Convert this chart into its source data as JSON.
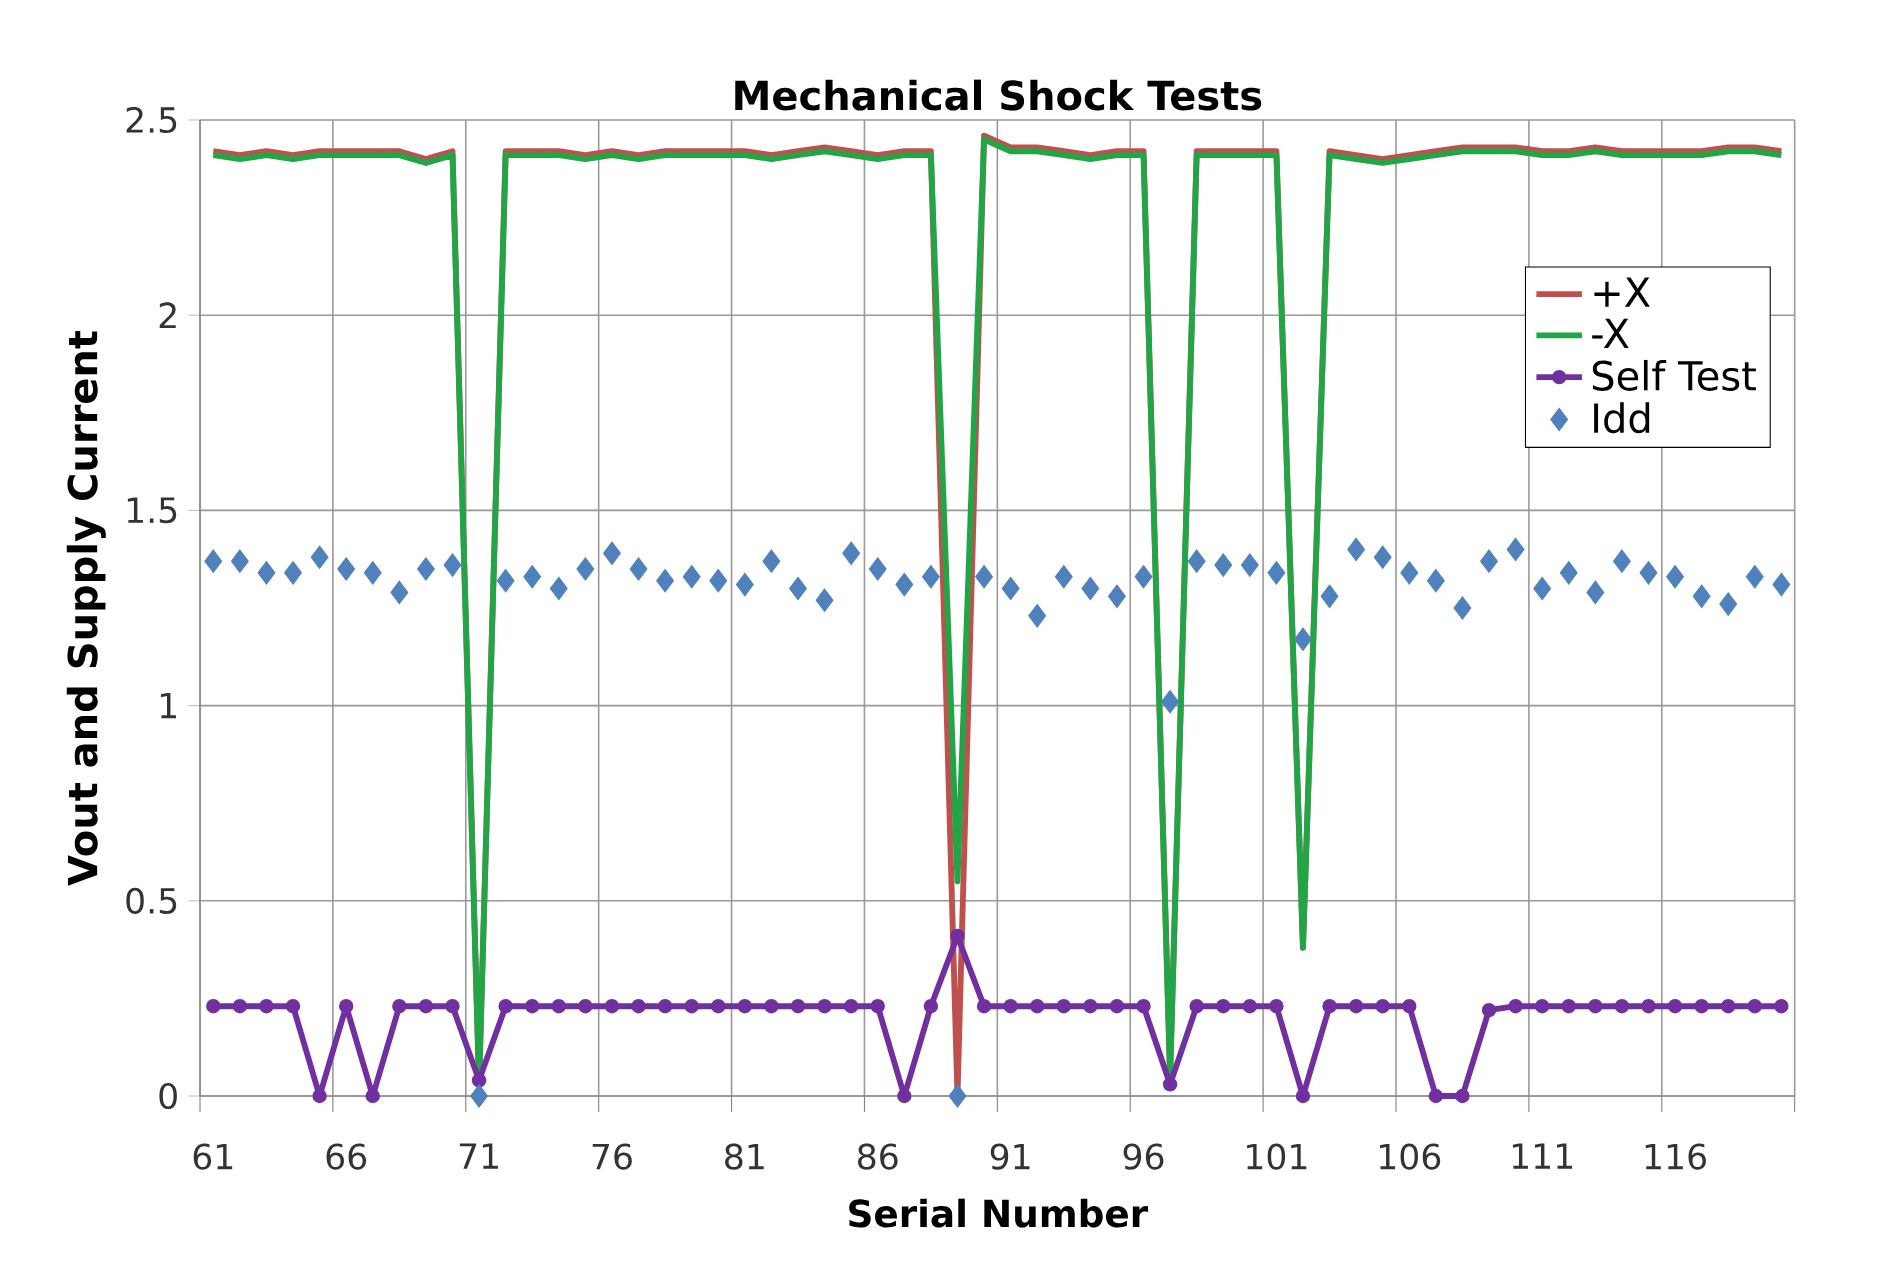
{
  "chart_data": {
    "type": "line",
    "title": "Mechanical Shock Tests",
    "xlabel": "Serial Number",
    "ylabel": "Vout and Supply Current",
    "categories": [
      "61",
      null,
      null,
      null,
      null,
      "66",
      null,
      null,
      null,
      null,
      "71",
      null,
      null,
      null,
      null,
      "76",
      null,
      null,
      null,
      null,
      "81",
      null,
      null,
      null,
      null,
      "86",
      null,
      null,
      null,
      null,
      "91",
      null,
      null,
      null,
      null,
      "96",
      null,
      null,
      null,
      null,
      "101",
      null,
      null,
      null,
      null,
      "106",
      null,
      null,
      null,
      null,
      "111",
      null,
      null,
      null,
      null,
      "116",
      null,
      null,
      null,
      null
    ],
    "ylim": [
      0,
      2.5
    ],
    "yticks": [
      0,
      0.5,
      1,
      1.5,
      2,
      2.5
    ],
    "grid": true,
    "legend": "right",
    "series": [
      {
        "name": "+X",
        "color": "#c0504d",
        "marker": "none",
        "values": [
          2.42,
          2.41,
          2.42,
          2.41,
          2.42,
          2.42,
          2.42,
          2.42,
          2.4,
          2.42,
          0.03,
          2.42,
          2.42,
          2.42,
          2.41,
          2.42,
          2.41,
          2.42,
          2.42,
          2.42,
          2.42,
          2.41,
          2.42,
          2.43,
          2.42,
          2.41,
          2.42,
          2.42,
          0,
          2.46,
          2.43,
          2.43,
          2.42,
          2.41,
          2.42,
          2.42,
          0.05,
          2.42,
          2.42,
          2.42,
          2.42,
          0.38,
          2.42,
          2.41,
          2.4,
          2.41,
          2.42,
          2.43,
          2.43,
          2.43,
          2.42,
          2.42,
          2.43,
          2.42,
          2.42,
          2.42,
          2.42,
          2.43,
          2.43,
          2.42
        ]
      },
      {
        "name": "-X",
        "color": "#22a547",
        "marker": "none",
        "values": [
          2.41,
          2.4,
          2.41,
          2.4,
          2.41,
          2.41,
          2.41,
          2.41,
          2.39,
          2.41,
          0.03,
          2.41,
          2.41,
          2.41,
          2.4,
          2.41,
          2.4,
          2.41,
          2.41,
          2.41,
          2.41,
          2.4,
          2.41,
          2.42,
          2.41,
          2.4,
          2.41,
          2.41,
          0.55,
          2.45,
          2.42,
          2.42,
          2.41,
          2.4,
          2.41,
          2.41,
          0.05,
          2.41,
          2.41,
          2.41,
          2.41,
          0.38,
          2.41,
          2.4,
          2.39,
          2.4,
          2.41,
          2.42,
          2.42,
          2.42,
          2.41,
          2.41,
          2.42,
          2.41,
          2.41,
          2.41,
          2.41,
          2.42,
          2.42,
          2.41
        ]
      },
      {
        "name": "Self Test",
        "color": "#7030a0",
        "marker": "circle",
        "values": [
          0.23,
          0.23,
          0.23,
          0.23,
          0,
          0.23,
          0,
          0.23,
          0.23,
          0.23,
          0.04,
          0.23,
          0.23,
          0.23,
          0.23,
          0.23,
          0.23,
          0.23,
          0.23,
          0.23,
          0.23,
          0.23,
          0.23,
          0.23,
          0.23,
          0.23,
          0,
          0.23,
          0.41,
          0.23,
          0.23,
          0.23,
          0.23,
          0.23,
          0.23,
          0.23,
          0.03,
          0.23,
          0.23,
          0.23,
          0.23,
          0,
          0.23,
          0.23,
          0.23,
          0.23,
          0,
          0,
          0.22,
          0.23,
          0.23,
          0.23,
          0.23,
          0.23,
          0.23,
          0.23,
          0.23,
          0.23,
          0.23,
          0.23
        ]
      },
      {
        "name": "Idd",
        "type": "scatter",
        "color": "#4f81bd",
        "marker": "diamond",
        "values": [
          1.37,
          1.37,
          1.34,
          1.34,
          1.38,
          1.35,
          1.34,
          1.29,
          1.35,
          1.36,
          0,
          1.32,
          1.33,
          1.3,
          1.35,
          1.39,
          1.35,
          1.32,
          1.33,
          1.32,
          1.31,
          1.37,
          1.3,
          1.27,
          1.39,
          1.35,
          1.31,
          1.33,
          0,
          1.33,
          1.3,
          1.23,
          1.33,
          1.3,
          1.28,
          1.33,
          1.01,
          1.37,
          1.36,
          1.36,
          1.34,
          1.17,
          1.28,
          1.4,
          1.38,
          1.34,
          1.32,
          1.25,
          1.37,
          1.4,
          1.3,
          1.34,
          1.29,
          1.37,
          1.34,
          1.33,
          1.28,
          1.26,
          1.33,
          1.31
        ]
      }
    ]
  }
}
